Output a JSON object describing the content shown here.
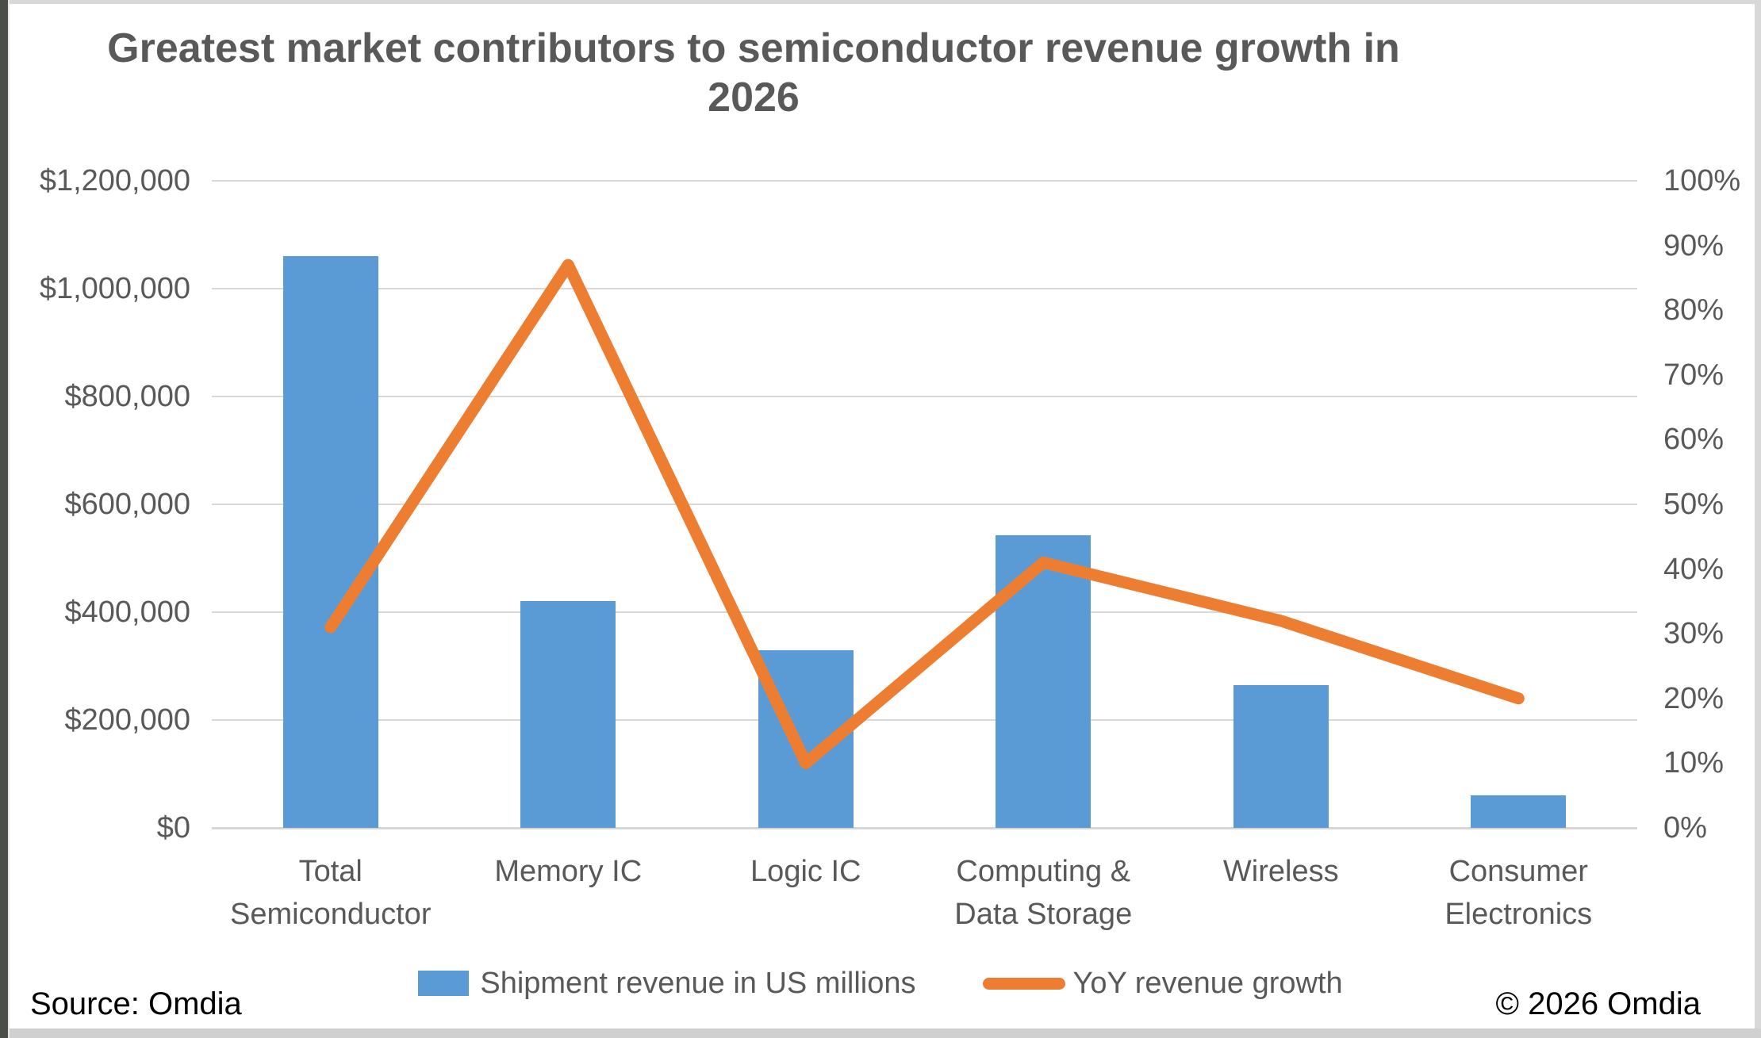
{
  "title": {
    "lines": [
      "Greatest market contributors to semiconductor revenue growth in",
      "2026"
    ],
    "full": "Greatest market contributors to semiconductor revenue growth in 2026"
  },
  "chart_data": {
    "type": "bar",
    "subtype": "combo-bar-line-dual-axis",
    "categories": [
      "Total Semiconductor",
      "Memory IC",
      "Logic IC",
      "Computing & Data Storage",
      "Wireless",
      "Consumer Electronics"
    ],
    "series": [
      {
        "name": "Shipment revenue in US millions",
        "type": "bar",
        "axis": "left",
        "color": "#5B9BD5",
        "values": [
          1060000,
          420000,
          330000,
          542000,
          265000,
          60000
        ]
      },
      {
        "name": "YoY revenue growth",
        "type": "line",
        "axis": "right",
        "color": "#ED7D31",
        "values_percent": [
          31,
          87,
          10,
          41,
          32,
          20
        ]
      }
    ],
    "left_axis": {
      "min": 0,
      "max": 1200000,
      "step": 200000,
      "labels": [
        "$0",
        "$200,000",
        "$400,000",
        "$600,000",
        "$800,000",
        "$1,000,000",
        "$1,200,000"
      ]
    },
    "right_axis": {
      "min": 0,
      "max": 100,
      "step": 10,
      "labels": [
        "0%",
        "10%",
        "20%",
        "30%",
        "40%",
        "50%",
        "60%",
        "70%",
        "80%",
        "90%",
        "100%"
      ]
    },
    "grid": true,
    "legend_position": "bottom"
  },
  "footer": {
    "source": "Source: Omdia",
    "copyright": "© 2026 Omdia"
  },
  "colors": {
    "bar": "#5B9BD5",
    "line": "#ED7D31",
    "text": "#595959",
    "gridline": "#D9D9D9",
    "footer_text": "#000000",
    "left_edge": "#494E46",
    "frame_edge": "#D8D8D8"
  }
}
